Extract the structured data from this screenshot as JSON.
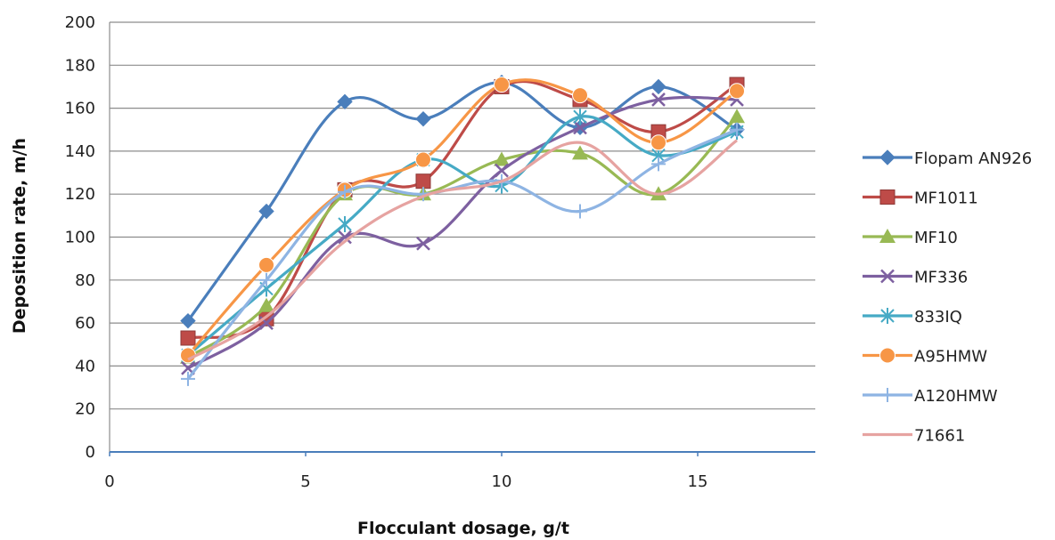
{
  "chart_data": {
    "type": "line",
    "xlabel": "Flocculant dosage, g/t",
    "ylabel": "Deposition rate, m/h",
    "xlim": [
      0,
      18
    ],
    "ylim": [
      0,
      200
    ],
    "xticks": [
      0,
      5,
      10,
      15
    ],
    "yticks": [
      0,
      20,
      40,
      60,
      80,
      100,
      120,
      140,
      160,
      180,
      200
    ],
    "grid": "horizontal",
    "smooth": true,
    "legend_position": "right",
    "x": [
      2,
      4,
      6,
      8,
      10,
      12,
      14,
      16
    ],
    "series": [
      {
        "name": "Flopam AN926",
        "color": "#4a7ebb",
        "marker": "diamond",
        "values": [
          61,
          112,
          163,
          155,
          172,
          151,
          170,
          150
        ]
      },
      {
        "name": "MF1011",
        "color": "#be4b48",
        "marker": "square",
        "values": [
          53,
          62,
          122,
          126,
          170,
          164,
          149,
          171
        ]
      },
      {
        "name": "MF10",
        "color": "#98b954",
        "marker": "triangle",
        "values": [
          44,
          68,
          120,
          120,
          136,
          139,
          120,
          156
        ]
      },
      {
        "name": "MF336",
        "color": "#7d60a0",
        "marker": "x",
        "values": [
          39,
          60,
          100,
          97,
          131,
          151,
          164,
          164
        ]
      },
      {
        "name": "833IQ",
        "color": "#46aac5",
        "marker": "star",
        "values": [
          45,
          76,
          106,
          136,
          124,
          156,
          138,
          149
        ]
      },
      {
        "name": "A95HMW",
        "color": "#f79646",
        "marker": "circle",
        "values": [
          45,
          87,
          122,
          136,
          171,
          166,
          144,
          168
        ]
      },
      {
        "name": "A120HMW",
        "color": "#8eb4e3",
        "marker": "plus",
        "values": [
          34,
          80,
          121,
          120,
          126,
          112,
          134,
          150
        ]
      },
      {
        "name": "71661",
        "color": "#e6a3a1",
        "marker": "none",
        "values": [
          43,
          63,
          98,
          119,
          126,
          144,
          120,
          145
        ]
      }
    ]
  }
}
